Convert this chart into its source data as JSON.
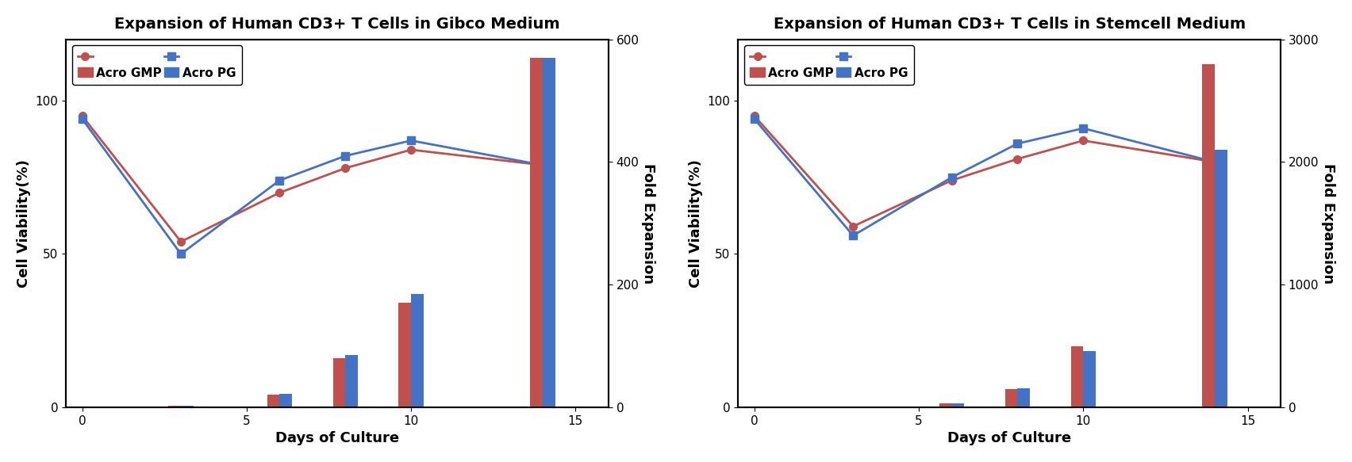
{
  "chart1": {
    "title": "Expansion of Human CD3+ T Cells in Gibco Medium",
    "line_days": [
      0,
      3,
      6,
      8,
      10,
      14
    ],
    "gmp_viability": [
      95,
      54,
      70,
      78,
      84,
      79
    ],
    "pg_viability": [
      94,
      50,
      74,
      82,
      87,
      79
    ],
    "bar_days": [
      3,
      6,
      8,
      10,
      14
    ],
    "gmp_fold": [
      2,
      20,
      80,
      170,
      570
    ],
    "pg_fold": [
      2,
      22,
      85,
      185,
      570
    ],
    "right_ylim": [
      0,
      600
    ],
    "right_yticks": [
      0,
      200,
      400,
      600
    ]
  },
  "chart2": {
    "title": "Expansion of Human CD3+ T Cells in Stemcell Medium",
    "line_days": [
      0,
      3,
      6,
      8,
      10,
      14
    ],
    "gmp_viability": [
      95,
      59,
      74,
      81,
      87,
      80
    ],
    "pg_viability": [
      94,
      56,
      75,
      86,
      91,
      80
    ],
    "bar_days": [
      3,
      6,
      8,
      10,
      14
    ],
    "gmp_fold": [
      2,
      30,
      150,
      500,
      2800
    ],
    "pg_fold": [
      2,
      32,
      155,
      460,
      2100
    ],
    "right_ylim": [
      0,
      3000
    ],
    "right_yticks": [
      0,
      1000,
      2000,
      3000
    ]
  },
  "shared": {
    "left_ylim": [
      0,
      120
    ],
    "left_yticks": [
      0,
      50,
      100
    ],
    "xlim": [
      -0.5,
      16
    ],
    "xticks": [
      0,
      5,
      10,
      15
    ],
    "ylabel_left": "Cell Viability(%)",
    "ylabel_right": "Fold Expansion",
    "xlabel": "Days of Culture",
    "gmp_color": "#C0504D",
    "pg_color": "#4472C4",
    "bar_width": 0.38,
    "line_lw": 2.0,
    "marker_size": 7,
    "legend_gmp": "Acro GMP",
    "legend_pg": "Acro PG",
    "title_fontsize": 14,
    "label_fontsize": 13,
    "tick_fontsize": 11,
    "legend_fontsize": 11
  }
}
